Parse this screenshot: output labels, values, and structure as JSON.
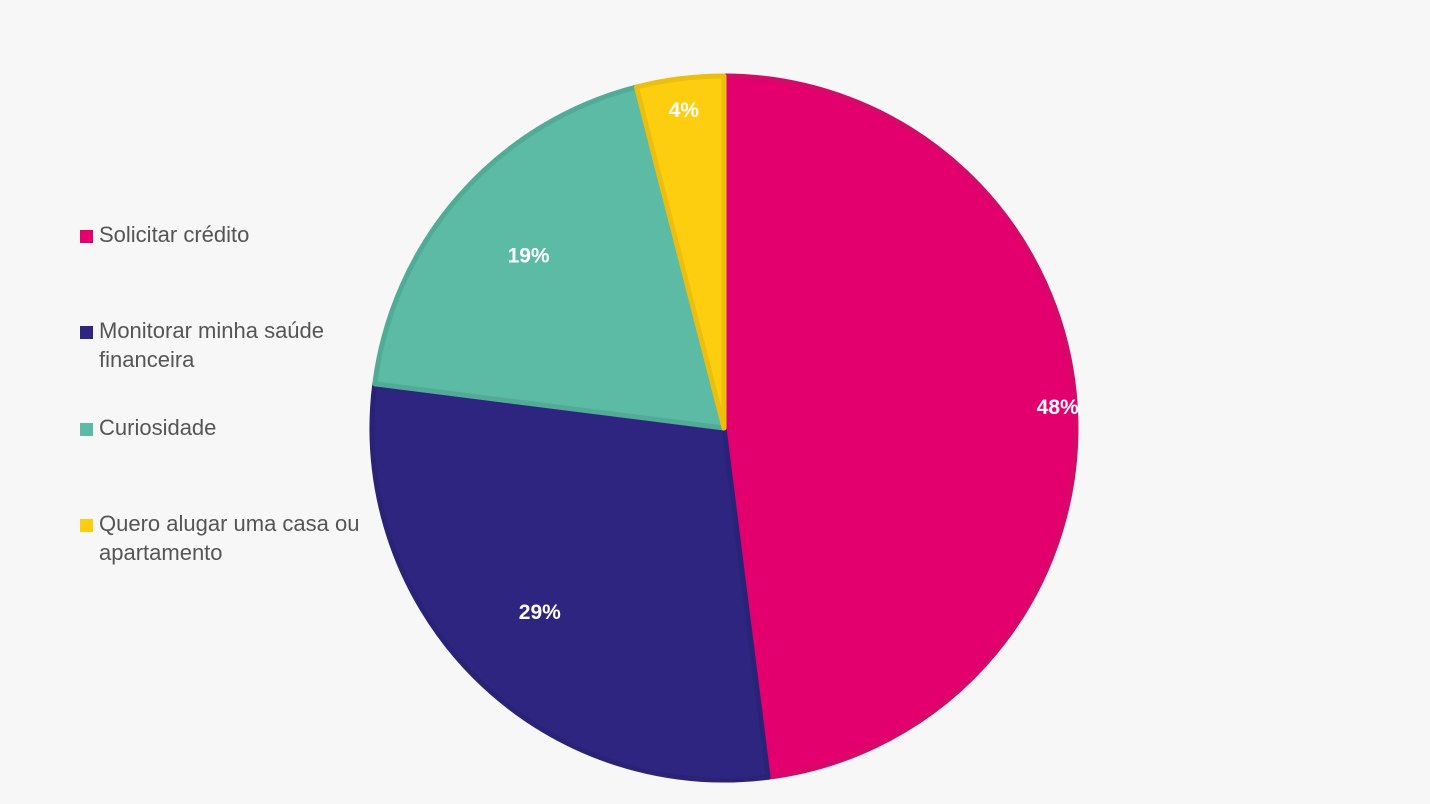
{
  "chart_data": {
    "type": "pie",
    "title": "",
    "categories": [
      "Solicitar crédito",
      "Monitorar minha saúde financeira",
      "Curiosidade",
      "Quero alugar uma casa ou apartamento"
    ],
    "values": [
      48,
      29,
      19,
      4
    ],
    "data_labels": [
      "48%",
      "29%",
      "19%",
      "4%"
    ],
    "colors": [
      "#e3006e",
      "#2e2580",
      "#5bbba5",
      "#fdce10"
    ],
    "border_colors": [
      "#d40a69",
      "#2a2276",
      "#52ab95",
      "#ecbf0e"
    ],
    "legend_position": "left",
    "start_angle": "top, clockwise"
  },
  "legend": {
    "items": [
      {
        "label": "Solicitar crédito",
        "color": "#e3006e"
      },
      {
        "label": "Monitorar minha saúde financeira",
        "color": "#2e2580"
      },
      {
        "label": "Curiosidade",
        "color": "#5bbba5"
      },
      {
        "label": "Quero alugar uma casa ou apartamento",
        "color": "#fdce10"
      }
    ]
  }
}
